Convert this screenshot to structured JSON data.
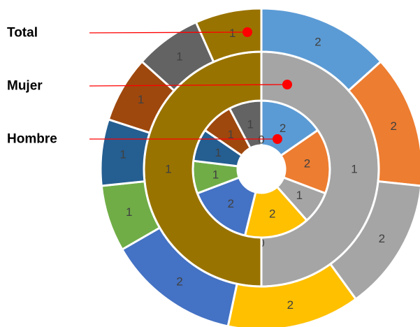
{
  "chart_data": {
    "type": "doughnut",
    "title": "",
    "legend": [
      {
        "label": "Total",
        "ring": "outer"
      },
      {
        "label": "Mujer",
        "ring": "middle"
      },
      {
        "label": "Hombre",
        "ring": "inner"
      }
    ],
    "colors": {
      "blue": "#5b9bd5",
      "orange": "#ed7d31",
      "gray": "#a5a5a5",
      "gold": "#ffc000",
      "royal": "#4472c4",
      "green": "#70ad47",
      "navy": "#255e91",
      "rust": "#9e480e",
      "darkgray": "#636363",
      "olive": "#997300",
      "marker": "#ff0000",
      "separator": "#ffffff"
    },
    "rings": [
      {
        "name": "Hombre",
        "segments": [
          {
            "value": 2,
            "label": "2",
            "color": "blue"
          },
          {
            "value": 2,
            "label": "2",
            "color": "orange"
          },
          {
            "value": 1,
            "label": "1",
            "color": "gray"
          },
          {
            "value": 2,
            "label": "2",
            "color": "gold"
          },
          {
            "value": 2,
            "label": "2",
            "color": "royal"
          },
          {
            "value": 1,
            "label": "1",
            "color": "green"
          },
          {
            "value": 1,
            "label": "1",
            "color": "navy"
          },
          {
            "value": 1,
            "label": "1",
            "color": "rust"
          },
          {
            "value": 1,
            "label": "1",
            "color": "darkgray"
          },
          {
            "value": 0,
            "label": "0",
            "color": "olive"
          }
        ]
      },
      {
        "name": "Mujer",
        "segments": [
          {
            "value": 0,
            "label": "0",
            "color": "blue"
          },
          {
            "value": 1,
            "label": "1",
            "color": "gray"
          },
          {
            "value": 0,
            "label": "0",
            "color": "royal"
          },
          {
            "value": 1,
            "label": "1",
            "color": "olive"
          }
        ]
      },
      {
        "name": "Total",
        "segments": [
          {
            "value": 2,
            "label": "2",
            "color": "blue"
          },
          {
            "value": 2,
            "label": "2",
            "color": "orange"
          },
          {
            "value": 2,
            "label": "2",
            "color": "gray"
          },
          {
            "value": 2,
            "label": "2",
            "color": "gold"
          },
          {
            "value": 2,
            "label": "2",
            "color": "royal"
          },
          {
            "value": 1,
            "label": "1",
            "color": "green"
          },
          {
            "value": 1,
            "label": "1",
            "color": "navy"
          },
          {
            "value": 1,
            "label": "1",
            "color": "rust"
          },
          {
            "value": 1,
            "label": "1",
            "color": "darkgray"
          },
          {
            "value": 1,
            "label": "1",
            "color": "olive"
          }
        ]
      }
    ]
  }
}
